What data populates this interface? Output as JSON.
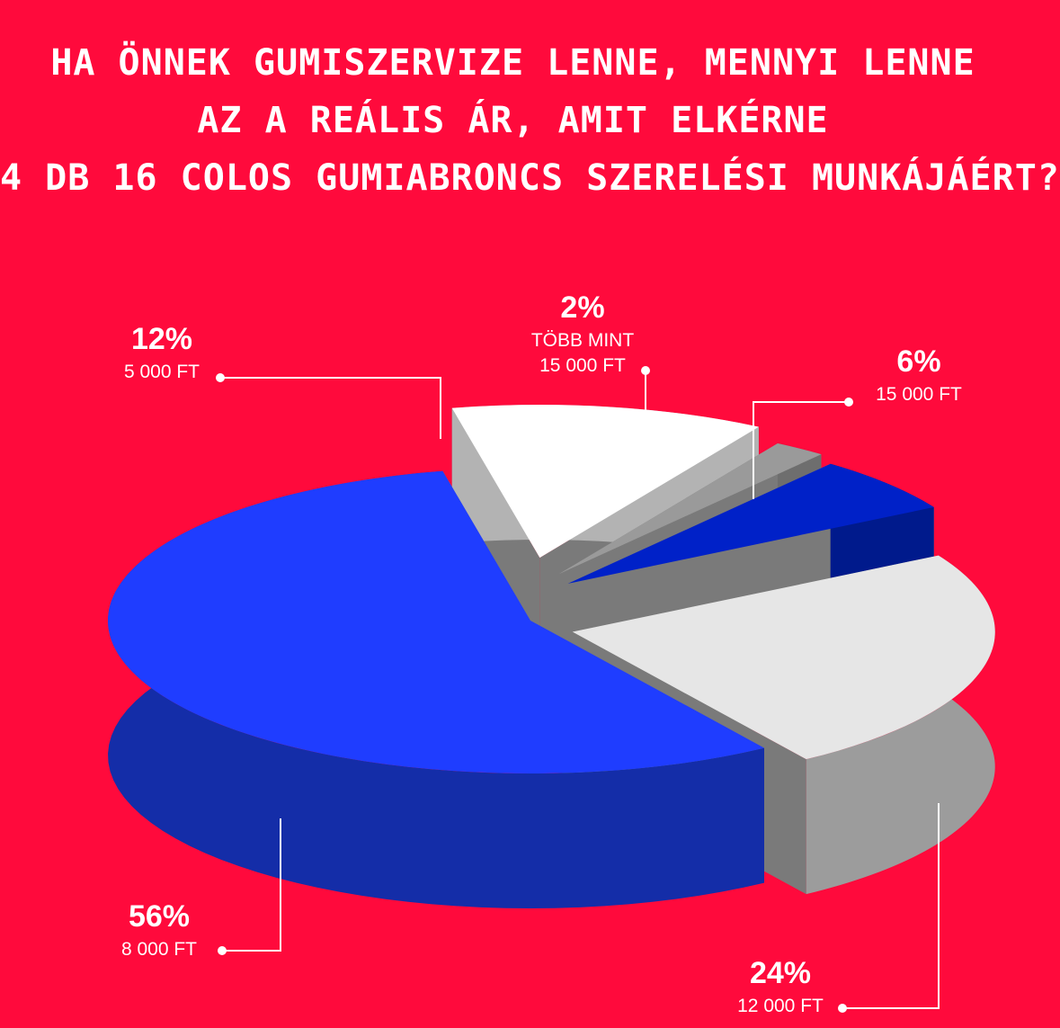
{
  "title_lines": [
    "HA ÖNNEK GUMISZERVIZE LENNE, MENNYI LENNE",
    "AZ A REÁLIS ÁR, AMIT ELKÉRNE",
    "4 DB 16 COLOS GUMIABRONCS SZERELÉSI MUNKÁJÁÉRT?"
  ],
  "colors": {
    "background": "#ff0a3c",
    "text": "#ffffff"
  },
  "chart_data": {
    "type": "pie",
    "style": "3d-exploded",
    "categories": [
      "5 000 FT",
      "TÖBB MINT 15 000 FT",
      "15 000 FT",
      "12 000 FT",
      "8 000 FT"
    ],
    "values": [
      12,
      2,
      6,
      24,
      56
    ],
    "unit": "%",
    "slices": [
      {
        "percent_label": "12%",
        "label_lines": [
          "5 000 FT"
        ],
        "value": 12,
        "top_color": "#ffffff",
        "side_color": "#b3b3b3"
      },
      {
        "percent_label": "2%",
        "label_lines": [
          "TÖBB MINT",
          "15 000 FT"
        ],
        "value": 2,
        "top_color": "#9a9a9a",
        "side_color": "#6e6e6e"
      },
      {
        "percent_label": "6%",
        "label_lines": [
          "15 000 FT"
        ],
        "value": 6,
        "top_color": "#0021c8",
        "side_color": "#001a8c"
      },
      {
        "percent_label": "24%",
        "label_lines": [
          "12 000 FT"
        ],
        "value": 24,
        "top_color": "#e6e6e6",
        "side_color": "#9c9c9c"
      },
      {
        "percent_label": "56%",
        "label_lines": [
          "8 000 FT"
        ],
        "value": 56,
        "top_color": "#1f3dff",
        "side_color": "#142da8"
      }
    ],
    "legend": "none"
  }
}
